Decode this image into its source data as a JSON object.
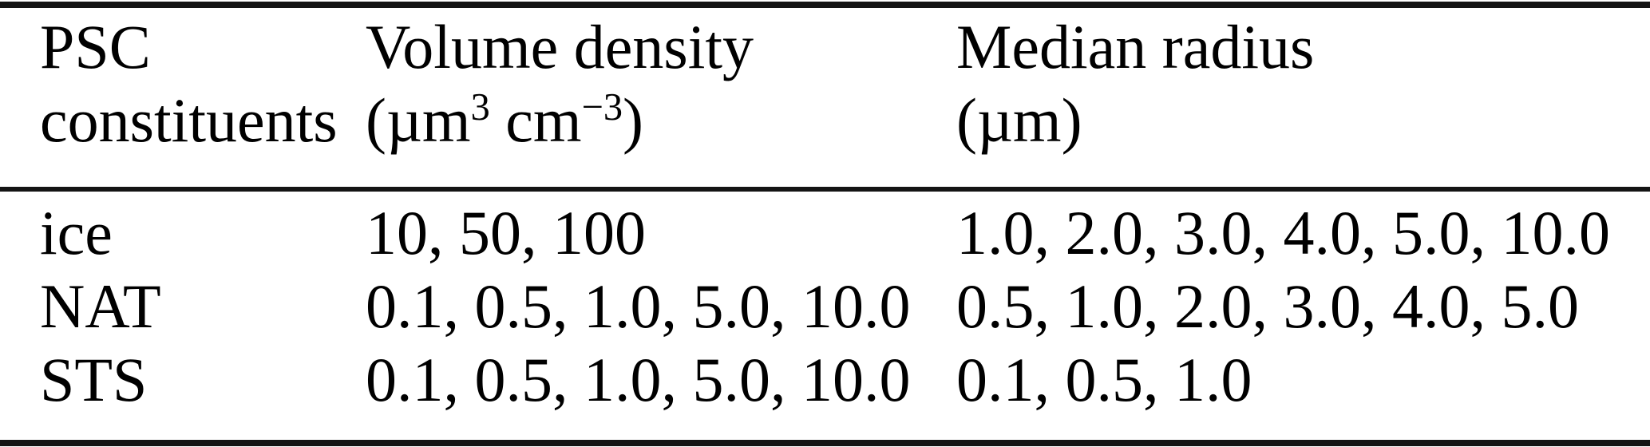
{
  "page": {
    "background": "#ffffff",
    "text_color": "#000000",
    "rule_color": "#141414"
  },
  "table": {
    "header": {
      "col1": {
        "title": "PSC",
        "subtitle": "constituents"
      },
      "col2": {
        "title": "Volume density",
        "unit_open": "(µm",
        "unit_sup1": "3",
        "unit_mid": " cm",
        "unit_sup2": "−3",
        "unit_close": ")"
      },
      "col3": {
        "title": "Median radius",
        "subtitle": "(µm)"
      }
    },
    "rows": [
      {
        "constituent": "ice",
        "volume_density": "10, 50, 100",
        "median_radius": "1.0, 2.0, 3.0, 4.0, 5.0, 10.0"
      },
      {
        "constituent": "NAT",
        "volume_density": "0.1, 0.5, 1.0, 5.0, 10.0",
        "median_radius": "0.5, 1.0, 2.0, 3.0, 4.0, 5.0"
      },
      {
        "constituent": "STS",
        "volume_density": "0.1, 0.5, 1.0, 5.0, 10.0",
        "median_radius": "0.1, 0.5, 1.0"
      }
    ]
  }
}
